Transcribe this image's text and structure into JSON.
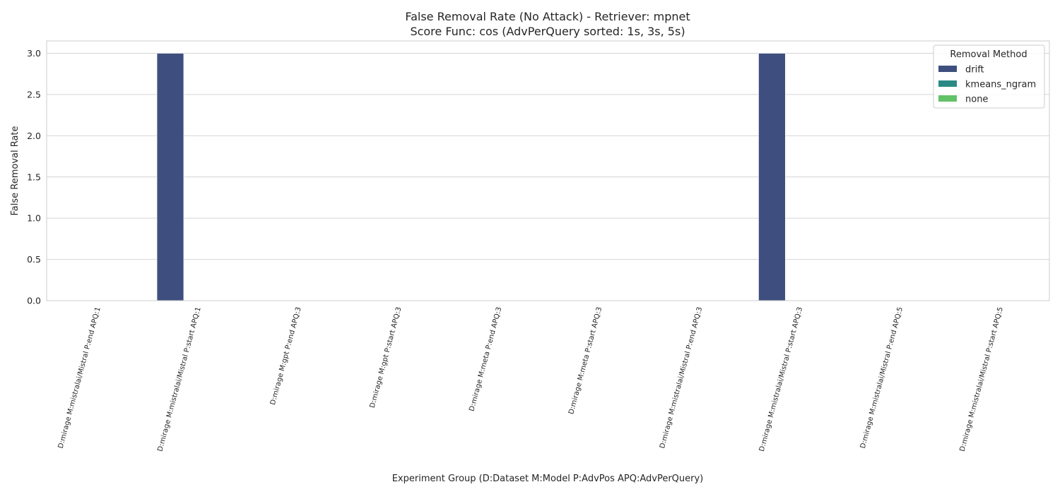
{
  "chart_data": {
    "type": "bar",
    "title": "False Removal Rate (No Attack) - Retriever: mpnet",
    "subtitle": "Score Func: cos (AdvPerQuery sorted: 1s, 3s, 5s)",
    "xlabel": "Experiment Group (D:Dataset M:Model P:AdvPos APQ:AdvPerQuery)",
    "ylabel": "False Removal Rate",
    "ylim": [
      0,
      3.15
    ],
    "yticks": [
      0.0,
      0.5,
      1.0,
      1.5,
      2.0,
      2.5,
      3.0
    ],
    "grid": true,
    "categories": [
      "D:mirage M:mistralai/Mistral P:end APQ:1",
      "D:mirage M:mistralai/Mistral P:start APQ:1",
      "D:mirage M:gpt P:end APQ:3",
      "D:mirage M:gpt P:start APQ:3",
      "D:mirage M:meta P:end APQ:3",
      "D:mirage M:meta P:start APQ:3",
      "D:mirage M:mistralai/Mistral P:end APQ:3",
      "D:mirage M:mistralai/Mistral P:start APQ:3",
      "D:mirage M:mistralai/Mistral P:end APQ:5",
      "D:mirage M:mistralai/Mistral P:start APQ:5"
    ],
    "legend": {
      "title": "Removal Method",
      "placement": "top-right"
    },
    "series": [
      {
        "name": "drift",
        "color": "#3e4f7f",
        "values": [
          0,
          3,
          0,
          0,
          0,
          0,
          0,
          3,
          0,
          0
        ]
      },
      {
        "name": "kmeans_ngram",
        "color": "#2a8a83",
        "values": [
          0,
          0,
          0,
          0,
          0,
          0,
          0,
          0,
          0,
          0
        ]
      },
      {
        "name": "none",
        "color": "#63c168",
        "values": [
          0,
          0,
          0,
          0,
          0,
          0,
          0,
          0,
          0,
          0
        ]
      }
    ]
  }
}
